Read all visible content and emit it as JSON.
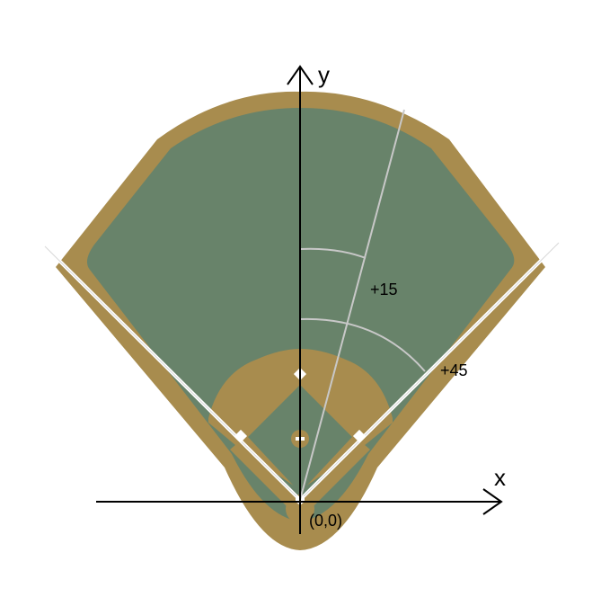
{
  "diagram": {
    "axes": {
      "x_label": "x",
      "y_label": "y",
      "origin_label": "(0,0)"
    },
    "angles": [
      {
        "label": "+15"
      },
      {
        "label": "+45"
      }
    ],
    "colors": {
      "warning_track": "#a88c4e",
      "grass": "#68836a",
      "infield_dirt": "#a88c4e",
      "foul_line": "#ffffff",
      "reference_line": "#c8c8c8",
      "axis": "#000000",
      "base": "#ffffff"
    },
    "icons": [
      "home-plate",
      "first-base",
      "second-base",
      "third-base",
      "pitchers-mound"
    ]
  }
}
